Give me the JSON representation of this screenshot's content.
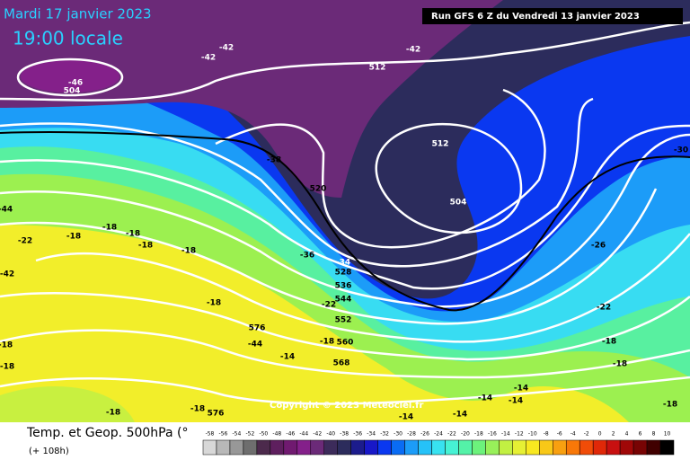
{
  "header": {
    "date": "Mardi 17 janvier 2023",
    "time": "19:00 locale",
    "run": "Run GFS 6 Z du Vendredi 13 janvier 2023"
  },
  "footer": {
    "title": "Temp. et Geop. 500hPa (°",
    "lead": "(+ 108h)",
    "copyright": "Copyright © 2023 Meteociel.fr"
  },
  "scale": {
    "values": [
      -58,
      -56,
      -54,
      -52,
      -50,
      -48,
      -46,
      -44,
      -42,
      -40,
      -38,
      -36,
      -34,
      -32,
      -30,
      -28,
      -26,
      -24,
      -22,
      -20,
      -18,
      -16,
      -14,
      -12,
      -10,
      -8,
      -6,
      -4,
      -2,
      0,
      2,
      4,
      6,
      8,
      10
    ],
    "colors": [
      "#d8d8d8",
      "#b8b8b8",
      "#989898",
      "#6e6e6e",
      "#4c2a4c",
      "#5e1f5e",
      "#701a70",
      "#84208a",
      "#6b2a78",
      "#3c2b5a",
      "#2c2c5c",
      "#1c1c8c",
      "#1818c8",
      "#0a38f0",
      "#0a6cf4",
      "#1c9cf8",
      "#26c2f8",
      "#38e2f0",
      "#46f2d4",
      "#54f2a8",
      "#6cf27c",
      "#98f05a",
      "#c2f042",
      "#e6f034",
      "#f8e820",
      "#f8c818",
      "#f8a010",
      "#f87808",
      "#f04c08",
      "#e02808",
      "#c81010",
      "#a00808",
      "#780404",
      "#400000",
      "#000000"
    ]
  },
  "map_labels": [
    "-42",
    "-42",
    "-42",
    "512",
    "-46",
    "504",
    "512",
    "-30",
    "-38",
    "520",
    "504",
    "-44",
    "-22",
    "-18",
    "-18",
    "-18",
    "-18",
    "-18",
    "-26",
    "-34",
    "-36",
    "528",
    "536",
    "544",
    "552",
    "-22",
    "-18",
    "-22",
    "576",
    "-44",
    "-18",
    "560",
    "-14",
    "568",
    "-18",
    "-18",
    "-18",
    "-18",
    "-14",
    "-14",
    "-14",
    "-14",
    "-14",
    "-18",
    "-18",
    "576",
    "-18",
    "-42",
    "512"
  ]
}
